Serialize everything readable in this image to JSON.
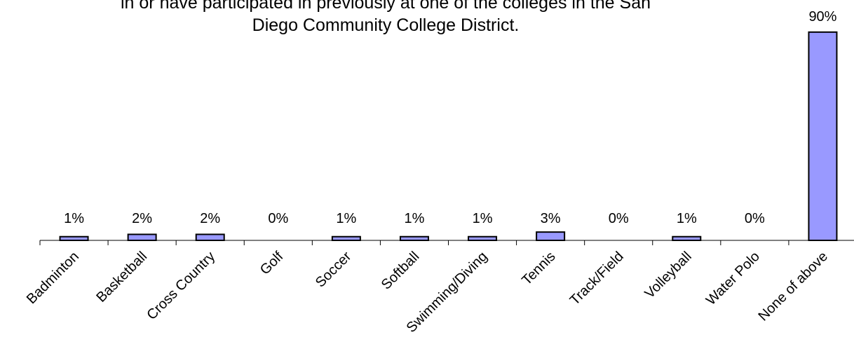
{
  "chart_data": {
    "type": "bar",
    "title_lines": [
      "in or have participated in previously at one of the colleges in the San",
      "Diego Community College District."
    ],
    "categories": [
      "Badminton",
      "Basketball",
      "Cross Country",
      "Golf",
      "Soccer",
      "Softball",
      "Swimming/Diving",
      "Tennis",
      "Track/Field",
      "Volleyball",
      "Water Polo",
      "None of above"
    ],
    "values": [
      1,
      2,
      2,
      0,
      1,
      1,
      1,
      3,
      0,
      1,
      0,
      90
    ],
    "value_labels": [
      "1%",
      "2%",
      "2%",
      "0%",
      "1%",
      "1%",
      "1%",
      "3%",
      "0%",
      "1%",
      "0%",
      "90%"
    ],
    "unit": "%",
    "ylim": [
      0,
      100
    ],
    "grid": false,
    "legend": "none",
    "bar_color": "#9999ff",
    "bar_edge_color": "#000000"
  }
}
